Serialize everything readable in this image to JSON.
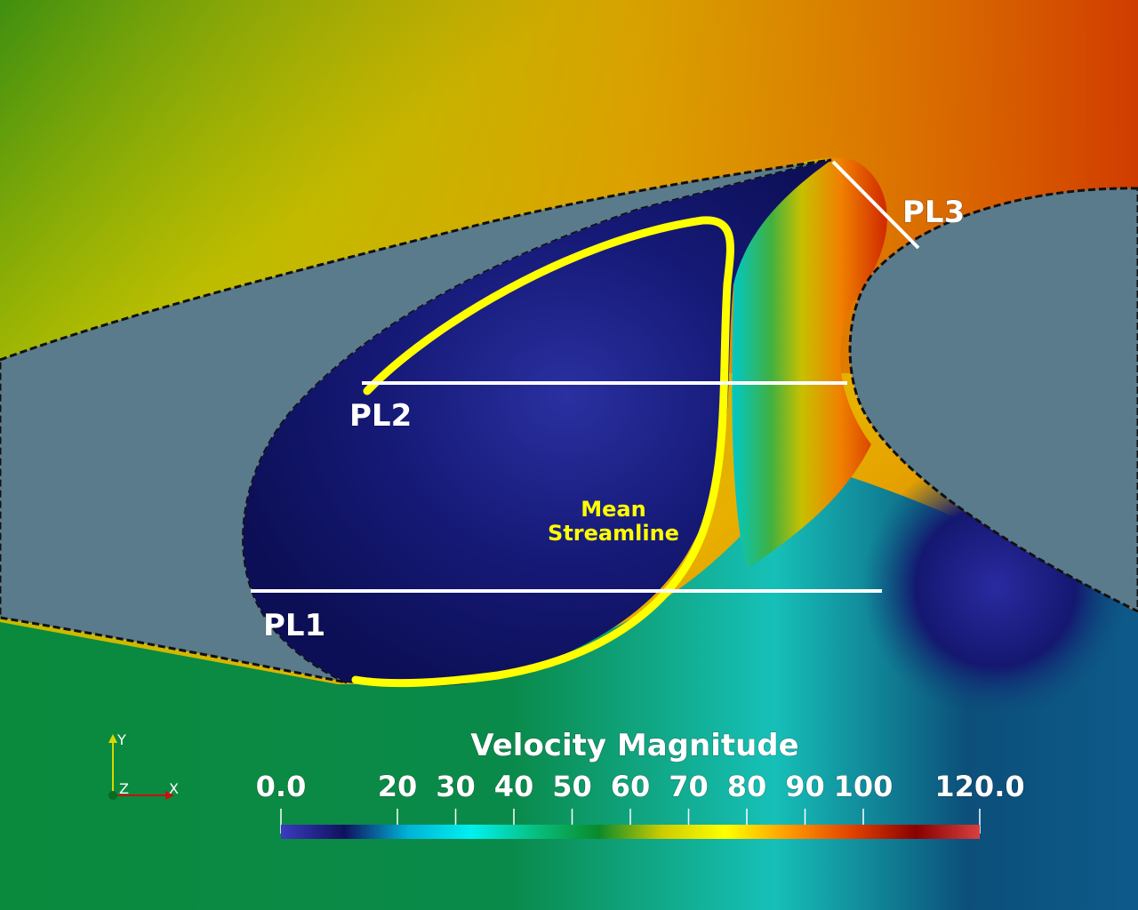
{
  "figure": {
    "plane_labels": [
      "PL1",
      "PL2",
      "PL3"
    ],
    "streamline_label": [
      "Mean",
      "Streamline"
    ],
    "colorbar": {
      "title": "Velocity Magnitude",
      "range": [
        0,
        120
      ],
      "ticks": [
        {
          "label": "0.0",
          "value": 0
        },
        {
          "label": "20",
          "value": 20
        },
        {
          "label": "30",
          "value": 30
        },
        {
          "label": "40",
          "value": 40
        },
        {
          "label": "50",
          "value": 50
        },
        {
          "label": "60",
          "value": 60
        },
        {
          "label": "70",
          "value": 70
        },
        {
          "label": "80",
          "value": 80
        },
        {
          "label": "90",
          "value": 90
        },
        {
          "label": "100",
          "value": 100
        },
        {
          "label": "120.0",
          "value": 120
        }
      ],
      "color_stops": [
        "#3b3bbf",
        "#10125e",
        "#00b3d6",
        "#00f0f0",
        "#07c080",
        "#0a8a2a",
        "#cccc00",
        "#ffff00",
        "#ff9900",
        "#e04000",
        "#8a0000",
        "#d84040"
      ]
    },
    "axes_triad": {
      "y": "Y",
      "z": "Z",
      "x": "X"
    },
    "colors": {
      "solid": "#5a7b8c",
      "recirculation": "#12166a",
      "streamline": "#ffff00",
      "plane_lines": "#ffffff"
    }
  }
}
